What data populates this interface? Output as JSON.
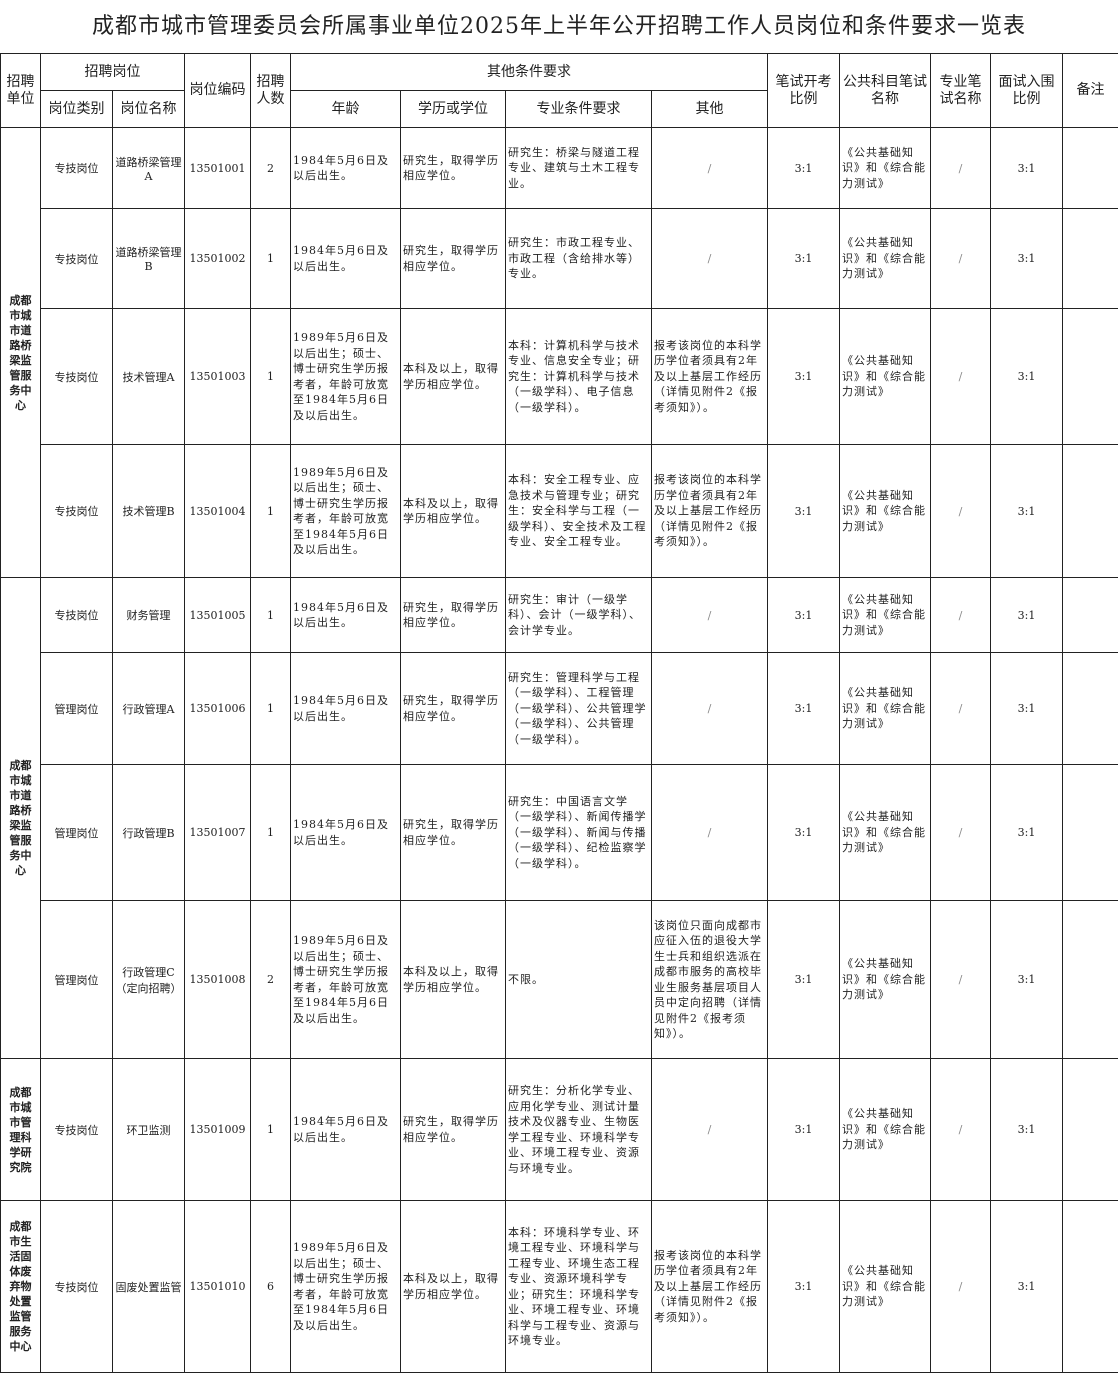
{
  "title": "成都市城市管理委员会所属事业单位2025年上半年公开招聘工作人员岗位和条件要求一览表",
  "headers": {
    "unit": "招聘单位",
    "post": "招聘岗位",
    "post_type": "岗位类别",
    "post_name": "岗位名称",
    "code": "岗位编码",
    "count": "招聘人数",
    "other_conditions": "其他条件要求",
    "age": "年龄",
    "education": "学历或学位",
    "major": "专业条件要求",
    "other": "其他",
    "written_ratio": "笔试开考比例",
    "public_exam": "公共科目笔试名称",
    "major_exam": "专业笔试名称",
    "interview_ratio": "面试入围比例",
    "remark": "备注"
  },
  "units": [
    {
      "name": "成都市城市道路桥梁监管服务中心",
      "rows": 4
    },
    {
      "name": "成都市城市道路桥梁监管服务中心",
      "rows": 4
    },
    {
      "name": "成都市城市管理科学研究院",
      "rows": 1
    },
    {
      "name": "成都市生活固体废弃物处置监管服务中心",
      "rows": 1
    }
  ],
  "rows": [
    {
      "type": "专技岗位",
      "name": "道路桥梁管理A",
      "code": "13501001",
      "count": "2",
      "age": "1984年5月6日及以后出生。",
      "edu": "研究生，取得学历相应学位。",
      "major": "研究生：桥梁与隧道工程专业、建筑与土木工程专业。",
      "other": "/",
      "written": "3:1",
      "public": "《公共基础知识》和《综合能力测试》",
      "major_exam": "/",
      "interview": "3:1",
      "remark": ""
    },
    {
      "type": "专技岗位",
      "name": "道路桥梁管理B",
      "code": "13501002",
      "count": "1",
      "age": "1984年5月6日及以后出生。",
      "edu": "研究生，取得学历相应学位。",
      "major": "研究生：市政工程专业、市政工程（含给排水等）专业。",
      "other": "/",
      "written": "3:1",
      "public": "《公共基础知识》和《综合能力测试》",
      "major_exam": "/",
      "interview": "3:1",
      "remark": ""
    },
    {
      "type": "专技岗位",
      "name": "技术管理A",
      "code": "13501003",
      "count": "1",
      "age": "1989年5月6日及以后出生；硕士、博士研究生学历报考者，年龄可放宽至1984年5月6日及以后出生。",
      "edu": "本科及以上，取得学历相应学位。",
      "major": "本科：计算机科学与技术专业、信息安全专业；研究生：计算机科学与技术（一级学科）、电子信息（一级学科）。",
      "other": "报考该岗位的本科学历学位者须具有2年及以上基层工作经历（详情见附件2《报考须知》）。",
      "written": "3:1",
      "public": "《公共基础知识》和《综合能力测试》",
      "major_exam": "/",
      "interview": "3:1",
      "remark": ""
    },
    {
      "type": "专技岗位",
      "name": "技术管理B",
      "code": "13501004",
      "count": "1",
      "age": "1989年5月6日及以后出生；硕士、博士研究生学历报考者，年龄可放宽至1984年5月6日及以后出生。",
      "edu": "本科及以上，取得学历相应学位。",
      "major": "本科：安全工程专业、应急技术与管理专业；研究生：安全科学与工程（一级学科）、安全技术及工程专业、安全工程专业。",
      "other": "报考该岗位的本科学历学位者须具有2年及以上基层工作经历（详情见附件2《报考须知》）。",
      "written": "3:1",
      "public": "《公共基础知识》和《综合能力测试》",
      "major_exam": "/",
      "interview": "3:1",
      "remark": ""
    },
    {
      "type": "专技岗位",
      "name": "财务管理",
      "code": "13501005",
      "count": "1",
      "age": "1984年5月6日及以后出生。",
      "edu": "研究生，取得学历相应学位。",
      "major": "研究生：审计（一级学科）、会计（一级学科）、会计学专业。",
      "other": "/",
      "written": "3:1",
      "public": "《公共基础知识》和《综合能力测试》",
      "major_exam": "/",
      "interview": "3:1",
      "remark": ""
    },
    {
      "type": "管理岗位",
      "name": "行政管理A",
      "code": "13501006",
      "count": "1",
      "age": "1984年5月6日及以后出生。",
      "edu": "研究生，取得学历相应学位。",
      "major": "研究生：管理科学与工程（一级学科）、工程管理（一级学科）、公共管理学（一级学科）、公共管理（一级学科）。",
      "other": "/",
      "written": "3:1",
      "public": "《公共基础知识》和《综合能力测试》",
      "major_exam": "/",
      "interview": "3:1",
      "remark": ""
    },
    {
      "type": "管理岗位",
      "name": "行政管理B",
      "code": "13501007",
      "count": "1",
      "age": "1984年5月6日及以后出生。",
      "edu": "研究生，取得学历相应学位。",
      "major": "研究生：中国语言文学（一级学科）、新闻传播学（一级学科）、新闻与传播（一级学科）、纪检监察学（一级学科）。",
      "other": "/",
      "written": "3:1",
      "public": "《公共基础知识》和《综合能力测试》",
      "major_exam": "/",
      "interview": "3:1",
      "remark": ""
    },
    {
      "type": "管理岗位",
      "name": "行政管理C（定向招聘）",
      "code": "13501008",
      "count": "2",
      "age": "1989年5月6日及以后出生；硕士、博士研究生学历报考者，年龄可放宽至1984年5月6日及以后出生。",
      "edu": "本科及以上，取得学历相应学位。",
      "major": "不限。",
      "other": "该岗位只面向成都市应征入伍的退役大学生士兵和组织选派在成都市服务的高校毕业生服务基层项目人员中定向招聘（详情见附件2《报考须知》）。",
      "written": "3:1",
      "public": "《公共基础知识》和《综合能力测试》",
      "major_exam": "/",
      "interview": "3:1",
      "remark": ""
    },
    {
      "type": "专技岗位",
      "name": "环卫监测",
      "code": "13501009",
      "count": "1",
      "age": "1984年5月6日及以后出生。",
      "edu": "研究生，取得学历相应学位。",
      "major": "研究生：分析化学专业、应用化学专业、测试计量技术及仪器专业、生物医学工程专业、环境科学专业、环境工程专业、资源与环境专业。",
      "other": "/",
      "written": "3:1",
      "public": "《公共基础知识》和《综合能力测试》",
      "major_exam": "/",
      "interview": "3:1",
      "remark": ""
    },
    {
      "type": "专技岗位",
      "name": "固废处置监管",
      "code": "13501010",
      "count": "6",
      "age": "1989年5月6日及以后出生；硕士、博士研究生学历报考者，年龄可放宽至1984年5月6日及以后出生。",
      "edu": "本科及以上，取得学历相应学位。",
      "major": "本科：环境科学专业、环境工程专业、环境科学与工程专业、环境生态工程专业、资源环境科学专业；研究生：环境科学专业、环境工程专业、环境科学与工程专业、资源与环境专业。",
      "other": "报考该岗位的本科学历学位者须具有2年及以上基层工作经历（详情见附件2《报考须知》）。",
      "written": "3:1",
      "public": "《公共基础知识》和《综合能力测试》",
      "major_exam": "/",
      "interview": "3:1",
      "remark": ""
    }
  ]
}
